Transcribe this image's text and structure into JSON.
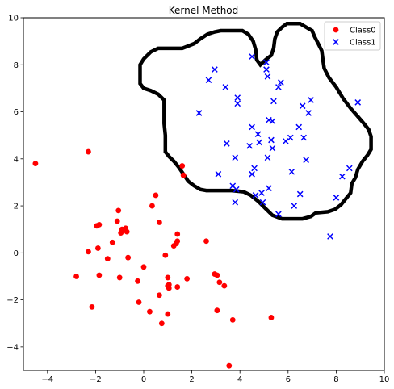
{
  "chart_data": {
    "type": "scatter",
    "title": "Kernel Method",
    "xlabel": "",
    "ylabel": "",
    "xlim": [
      -5,
      10
    ],
    "ylim": [
      -5,
      10
    ],
    "xticks": [
      -4,
      -2,
      0,
      2,
      4,
      6,
      8,
      10
    ],
    "yticks": [
      -4,
      -2,
      0,
      2,
      4,
      6,
      8,
      10
    ],
    "grid": false,
    "legend_position": "top-right",
    "series": [
      {
        "name": "Class0",
        "marker": "circle",
        "color": "#ff0000",
        "points": [
          [
            -4.5,
            3.8
          ],
          [
            -2.3,
            4.3
          ],
          [
            1.6,
            3.7
          ],
          [
            1.65,
            3.3
          ],
          [
            0.5,
            2.45
          ],
          [
            0.35,
            2.0
          ],
          [
            0.65,
            1.3
          ],
          [
            1.4,
            0.8
          ],
          [
            1.4,
            0.5
          ],
          [
            1.35,
            0.4
          ],
          [
            1.25,
            0.3
          ],
          [
            2.6,
            0.5
          ],
          [
            -1.05,
            1.8
          ],
          [
            -1.1,
            1.35
          ],
          [
            -0.9,
            1.0
          ],
          [
            -0.95,
            0.85
          ],
          [
            -0.75,
            1.05
          ],
          [
            -0.7,
            0.9
          ],
          [
            -1.95,
            1.15
          ],
          [
            -1.85,
            1.2
          ],
          [
            -1.9,
            0.2
          ],
          [
            -2.3,
            0.05
          ],
          [
            -1.3,
            0.45
          ],
          [
            -1.5,
            -0.25
          ],
          [
            -0.65,
            -0.2
          ],
          [
            -1.0,
            -1.05
          ],
          [
            -1.85,
            -0.95
          ],
          [
            -2.8,
            -1.0
          ],
          [
            0.9,
            -0.1
          ],
          [
            0.0,
            -0.6
          ],
          [
            -0.25,
            -1.2
          ],
          [
            1.0,
            -1.05
          ],
          [
            1.0,
            -1.4
          ],
          [
            1.05,
            -1.5
          ],
          [
            1.05,
            -1.35
          ],
          [
            1.4,
            -1.45
          ],
          [
            1.8,
            -1.1
          ],
          [
            2.95,
            -0.9
          ],
          [
            3.05,
            -0.95
          ],
          [
            3.15,
            -1.25
          ],
          [
            3.35,
            -1.4
          ],
          [
            0.65,
            -1.8
          ],
          [
            -0.2,
            -2.1
          ],
          [
            0.25,
            -2.5
          ],
          [
            0.75,
            -3.0
          ],
          [
            1.0,
            -2.6
          ],
          [
            3.05,
            -2.45
          ],
          [
            3.7,
            -2.85
          ],
          [
            5.3,
            -2.75
          ],
          [
            3.55,
            -4.8
          ],
          [
            -2.15,
            -2.3
          ]
        ]
      },
      {
        "name": "Class1",
        "marker": "x",
        "color": "#0000ff",
        "points": [
          [
            4.5,
            8.35
          ],
          [
            5.1,
            8.1
          ],
          [
            5.1,
            7.8
          ],
          [
            5.15,
            7.5
          ],
          [
            2.95,
            7.8
          ],
          [
            2.7,
            7.35
          ],
          [
            3.4,
            7.05
          ],
          [
            5.7,
            7.25
          ],
          [
            5.6,
            7.05
          ],
          [
            3.9,
            6.6
          ],
          [
            3.9,
            6.35
          ],
          [
            5.4,
            6.45
          ],
          [
            6.95,
            6.5
          ],
          [
            6.6,
            6.25
          ],
          [
            6.85,
            5.95
          ],
          [
            8.9,
            6.4
          ],
          [
            2.3,
            5.95
          ],
          [
            5.2,
            5.65
          ],
          [
            5.35,
            5.6
          ],
          [
            4.5,
            5.35
          ],
          [
            6.45,
            5.35
          ],
          [
            4.75,
            5.05
          ],
          [
            5.3,
            4.8
          ],
          [
            4.8,
            4.7
          ],
          [
            5.9,
            4.75
          ],
          [
            6.1,
            4.9
          ],
          [
            6.65,
            4.9
          ],
          [
            3.45,
            4.65
          ],
          [
            4.4,
            4.55
          ],
          [
            5.35,
            4.45
          ],
          [
            3.8,
            4.05
          ],
          [
            5.15,
            4.05
          ],
          [
            6.75,
            3.95
          ],
          [
            6.15,
            3.45
          ],
          [
            4.6,
            3.6
          ],
          [
            4.5,
            3.35
          ],
          [
            3.1,
            3.35
          ],
          [
            8.25,
            3.25
          ],
          [
            8.55,
            3.6
          ],
          [
            3.7,
            2.85
          ],
          [
            3.85,
            2.7
          ],
          [
            4.9,
            2.55
          ],
          [
            5.2,
            2.75
          ],
          [
            4.65,
            2.45
          ],
          [
            6.5,
            2.5
          ],
          [
            8.0,
            2.35
          ],
          [
            3.8,
            2.15
          ],
          [
            4.95,
            2.15
          ],
          [
            6.25,
            2.0
          ],
          [
            5.6,
            1.65
          ],
          [
            7.75,
            0.7
          ]
        ]
      }
    ],
    "decision_boundary": {
      "color": "#000000",
      "path": [
        [
          2.1,
          2.85
        ],
        [
          1.85,
          3.05
        ],
        [
          1.65,
          3.35
        ],
        [
          1.45,
          3.65
        ],
        [
          1.25,
          3.9
        ],
        [
          1.05,
          4.1
        ],
        [
          0.9,
          4.3
        ],
        [
          0.9,
          5.0
        ],
        [
          0.85,
          5.5
        ],
        [
          0.85,
          6.1
        ],
        [
          0.85,
          6.5
        ],
        [
          0.6,
          6.75
        ],
        [
          0.3,
          6.9
        ],
        [
          0.0,
          7.0
        ],
        [
          -0.15,
          7.2
        ],
        [
          -0.15,
          7.55
        ],
        [
          -0.15,
          8.0
        ],
        [
          0.0,
          8.25
        ],
        [
          0.3,
          8.55
        ],
        [
          0.6,
          8.7
        ],
        [
          1.6,
          8.7
        ],
        [
          1.85,
          8.8
        ],
        [
          2.1,
          8.9
        ],
        [
          2.35,
          9.1
        ],
        [
          2.65,
          9.3
        ],
        [
          2.95,
          9.4
        ],
        [
          3.2,
          9.45
        ],
        [
          4.1,
          9.45
        ],
        [
          4.35,
          9.3
        ],
        [
          4.55,
          9.0
        ],
        [
          4.65,
          8.65
        ],
        [
          4.7,
          8.2
        ],
        [
          4.85,
          8.0
        ],
        [
          5.05,
          8.2
        ],
        [
          5.3,
          8.4
        ],
        [
          5.4,
          8.7
        ],
        [
          5.45,
          9.1
        ],
        [
          5.55,
          9.4
        ],
        [
          5.75,
          9.6
        ],
        [
          5.95,
          9.75
        ],
        [
          6.5,
          9.75
        ],
        [
          6.75,
          9.6
        ],
        [
          7.0,
          9.45
        ],
        [
          7.1,
          9.2
        ],
        [
          7.25,
          8.9
        ],
        [
          7.4,
          8.6
        ],
        [
          7.45,
          8.2
        ],
        [
          7.5,
          7.85
        ],
        [
          7.7,
          7.45
        ],
        [
          8.0,
          7.05
        ],
        [
          8.3,
          6.55
        ],
        [
          8.6,
          6.15
        ],
        [
          8.9,
          5.8
        ],
        [
          9.15,
          5.5
        ],
        [
          9.35,
          5.25
        ],
        [
          9.45,
          4.95
        ],
        [
          9.45,
          4.4
        ],
        [
          9.3,
          4.15
        ],
        [
          9.1,
          3.9
        ],
        [
          8.9,
          3.55
        ],
        [
          8.8,
          3.2
        ],
        [
          8.65,
          2.95
        ],
        [
          8.6,
          2.55
        ],
        [
          8.4,
          2.3
        ],
        [
          8.2,
          2.05
        ],
        [
          7.95,
          1.85
        ],
        [
          7.65,
          1.75
        ],
        [
          7.15,
          1.7
        ],
        [
          6.95,
          1.55
        ],
        [
          6.6,
          1.45
        ],
        [
          5.75,
          1.45
        ],
        [
          5.35,
          1.6
        ],
        [
          5.05,
          1.9
        ],
        [
          4.75,
          2.2
        ],
        [
          4.45,
          2.45
        ],
        [
          4.15,
          2.6
        ],
        [
          3.65,
          2.65
        ],
        [
          2.6,
          2.65
        ],
        [
          2.35,
          2.7
        ],
        [
          2.1,
          2.85
        ]
      ]
    }
  }
}
